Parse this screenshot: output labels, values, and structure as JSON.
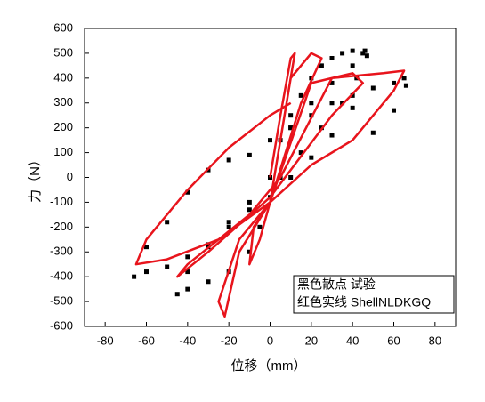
{
  "chart_data": {
    "type": "scatter",
    "x_label": "位移（mm）",
    "y_label": "力（N）",
    "xlim": [
      -90,
      90
    ],
    "xticks": [
      -80,
      -60,
      -40,
      -20,
      0,
      20,
      40,
      60,
      80
    ],
    "ylim": [
      -600,
      600
    ],
    "yticks": [
      -600,
      -500,
      -400,
      -300,
      -200,
      -100,
      0,
      100,
      200,
      300,
      400,
      500,
      600
    ],
    "legend": "lower right",
    "series": [
      {
        "name": "黑色散点 试验",
        "color": "#000000",
        "type": "scatter",
        "x": [
          0,
          5,
          10,
          15,
          20,
          25,
          30,
          35,
          40,
          45,
          42,
          35,
          25,
          15,
          5,
          0,
          -5,
          -10,
          -20,
          -30,
          -40,
          -45,
          -40,
          -30,
          -20,
          -10,
          0,
          10,
          20,
          30,
          40,
          46,
          47,
          40,
          30,
          20,
          10,
          0,
          -10,
          -20,
          -30,
          -40,
          -50,
          -60,
          -66,
          -60,
          -50,
          -40,
          -30,
          -20,
          -10,
          0,
          10,
          20,
          30,
          40,
          50,
          60,
          65,
          66,
          60,
          50
        ],
        "values": [
          0,
          150,
          250,
          330,
          400,
          450,
          480,
          500,
          510,
          500,
          400,
          300,
          200,
          100,
          0,
          -80,
          -200,
          -300,
          -380,
          -420,
          -450,
          -470,
          -380,
          -280,
          -180,
          -100,
          0,
          200,
          300,
          380,
          450,
          510,
          490,
          280,
          170,
          80,
          0,
          -80,
          -130,
          -200,
          -270,
          -320,
          -360,
          -380,
          -400,
          -280,
          -180,
          -60,
          30,
          70,
          90,
          150,
          200,
          250,
          300,
          330,
          360,
          380,
          400,
          370,
          270,
          180
        ]
      },
      {
        "name": "红色实线 ShellNLDKGQ",
        "color": "#e8141c",
        "type": "line",
        "x": [
          0,
          5,
          10,
          12,
          8,
          0,
          -5,
          -10,
          -8,
          0,
          10,
          20,
          25,
          15,
          0,
          -15,
          -22,
          -25,
          -15,
          0,
          20,
          40,
          45,
          30,
          0,
          -30,
          -45,
          -40,
          -10,
          5,
          30,
          55,
          65,
          60,
          40,
          20,
          0,
          -25,
          -50,
          -65,
          -60,
          -40,
          -20,
          0,
          10
        ],
        "values": [
          0,
          250,
          480,
          500,
          300,
          -100,
          -250,
          -350,
          -200,
          -100,
          400,
          500,
          480,
          300,
          -100,
          -300,
          -560,
          -500,
          -250,
          -100,
          380,
          420,
          380,
          250,
          -80,
          -300,
          -400,
          -350,
          -150,
          0,
          400,
          420,
          430,
          350,
          150,
          50,
          -100,
          -250,
          -330,
          -350,
          -250,
          -50,
          120,
          250,
          300
        ]
      }
    ]
  }
}
